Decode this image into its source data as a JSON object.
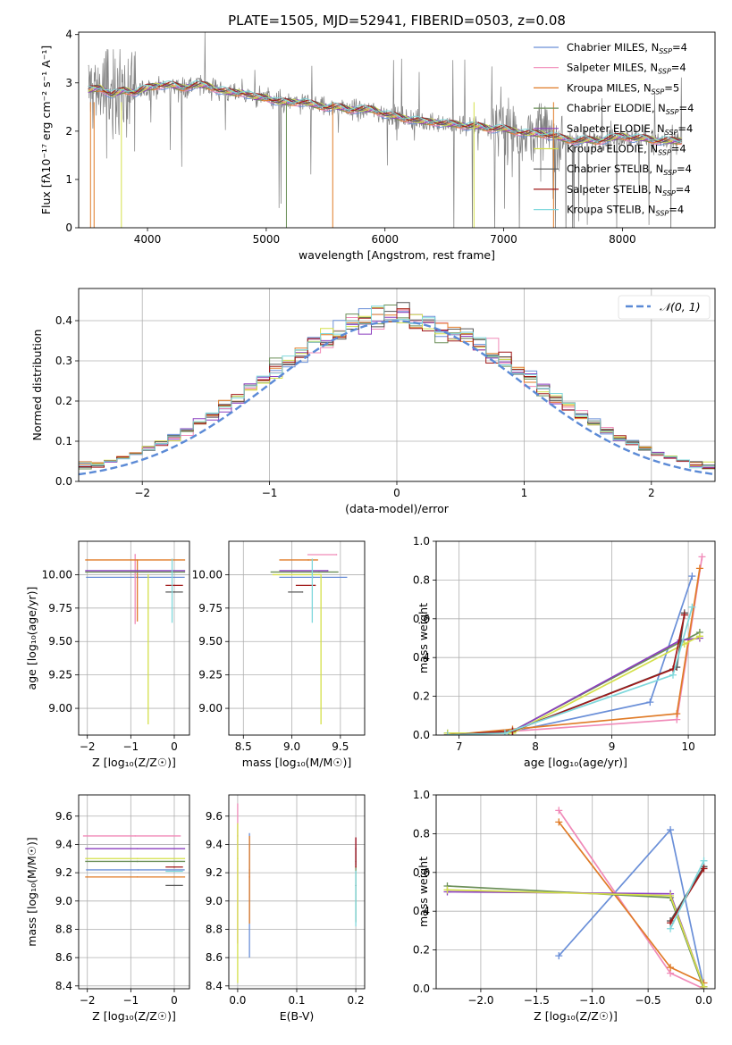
{
  "title": "PLATE=1505, MJD=52941, FIBERID=0503, z=0.08",
  "colors": [
    "#6a8fd8",
    "#f08ab8",
    "#e07b27",
    "#6b8f58",
    "#8b3fbf",
    "#d4e04a",
    "#555555",
    "#a01818",
    "#7fd8dc"
  ],
  "chart_data": [
    {
      "id": "spectrum",
      "type": "line",
      "title": "PLATE=1505, MJD=52941, FIBERID=0503, z=0.08",
      "xlabel": "wavelength [Angstrom, rest frame]",
      "ylabel": "Flux [fλ10⁻¹⁷ erg cm⁻² s⁻¹ A⁻¹]",
      "xlim": [
        3420,
        8780
      ],
      "ylim": [
        0,
        4.05
      ],
      "xticks": [
        4000,
        5000,
        6000,
        7000,
        8000
      ],
      "yticks": [
        0,
        1,
        2,
        3,
        4
      ],
      "legend_position": "right",
      "legend": [
        "Chabrier MILES, N_SSP=4",
        "Salpeter MILES, N_SSP=4",
        "Kroupa MILES, N_SSP=5",
        "Chabrier ELODIE, N_SSP=4",
        "Salpeter ELODIE, N_SSP=4",
        "Kroupa ELODIE, N_SSP=4",
        "Chabrier STELIB, N_SSP=4",
        "Salpeter STELIB, N_SSP=4",
        "Kroupa STELIB, N_SSP=4"
      ],
      "data_color": "#808080",
      "continuum": [
        [
          3500,
          2.85
        ],
        [
          3600,
          2.9
        ],
        [
          3700,
          2.75
        ],
        [
          3800,
          2.85
        ],
        [
          3900,
          2.8
        ],
        [
          4000,
          2.9
        ],
        [
          4100,
          2.95
        ],
        [
          4200,
          2.95
        ],
        [
          4300,
          2.9
        ],
        [
          4400,
          2.95
        ],
        [
          4500,
          2.95
        ],
        [
          4600,
          2.85
        ],
        [
          4700,
          2.8
        ],
        [
          4800,
          2.8
        ],
        [
          4900,
          2.7
        ],
        [
          5000,
          2.7
        ],
        [
          5100,
          2.6
        ],
        [
          5200,
          2.6
        ],
        [
          5300,
          2.6
        ],
        [
          5400,
          2.55
        ],
        [
          5500,
          2.5
        ],
        [
          5600,
          2.5
        ],
        [
          5700,
          2.45
        ],
        [
          5800,
          2.45
        ],
        [
          5900,
          2.45
        ],
        [
          6000,
          2.35
        ],
        [
          6100,
          2.3
        ],
        [
          6200,
          2.25
        ],
        [
          6300,
          2.2
        ],
        [
          6400,
          2.2
        ],
        [
          6500,
          2.15
        ],
        [
          6600,
          2.15
        ],
        [
          6700,
          2.1
        ],
        [
          6800,
          2.1
        ],
        [
          6900,
          2.05
        ],
        [
          7000,
          2.05
        ],
        [
          7100,
          2.0
        ],
        [
          7200,
          1.95
        ],
        [
          7300,
          1.95
        ],
        [
          7400,
          1.9
        ],
        [
          7500,
          1.85
        ],
        [
          7600,
          1.8
        ],
        [
          7700,
          1.82
        ],
        [
          7800,
          1.8
        ],
        [
          7900,
          1.85
        ],
        [
          8000,
          1.9
        ],
        [
          8100,
          1.85
        ],
        [
          8200,
          1.85
        ],
        [
          8300,
          1.8
        ],
        [
          8400,
          1.8
        ],
        [
          8500,
          1.8
        ]
      ]
    },
    {
      "id": "residuals",
      "type": "line",
      "xlabel": "(data-model)/error",
      "ylabel": "Normed distribution",
      "xlim": [
        -2.5,
        2.5
      ],
      "ylim": [
        0,
        0.48
      ],
      "xticks": [
        -2,
        -1,
        0,
        1,
        2
      ],
      "yticks": [
        0.0,
        0.1,
        0.2,
        0.3,
        0.4
      ],
      "grid": true,
      "legend": [
        "𝒩(0, 1)"
      ],
      "legend_position": "upper right",
      "gaussian": {
        "mean": 0,
        "sigma": 1,
        "color": "#5b8ad6"
      },
      "bin_width": 0.1
    },
    {
      "id": "age_vs_Z",
      "type": "scatter",
      "xlabel": "Z [log₁₀(Z/Z☉)]",
      "ylabel": "age  [log₁₀(age/yr)]",
      "xlim": [
        -2.2,
        0.35
      ],
      "ylim": [
        8.8,
        10.25
      ],
      "xticks": [
        -2,
        -1,
        0
      ],
      "yticks": [
        9.0,
        9.25,
        9.5,
        9.75,
        10.0
      ],
      "points": [
        {
          "x": -0.83,
          "xerr": [
            1.2,
            1.07
          ],
          "y": 9.98,
          "yerr": [
            0.0,
            0.0
          ]
        },
        {
          "x": -0.9,
          "xerr": [
            0.0,
            0.0
          ],
          "y": 10.15,
          "yerr": [
            0.52,
            0.0
          ]
        },
        {
          "x": -0.85,
          "xerr": [
            1.2,
            1.1
          ],
          "y": 10.11,
          "yerr": [
            0.46,
            0.0
          ]
        },
        {
          "x": -0.85,
          "xerr": [
            1.2,
            1.1
          ],
          "y": 10.02,
          "yerr": [
            0.0,
            0.0
          ]
        },
        {
          "x": -0.85,
          "xerr": [
            1.2,
            1.1
          ],
          "y": 10.03,
          "yerr": [
            0.0,
            0.0
          ]
        },
        {
          "x": -0.6,
          "xerr": [
            0.0,
            0.0
          ],
          "y": 10.0,
          "yerr": [
            1.12,
            0.0
          ]
        },
        {
          "x": 0.0,
          "xerr": [
            0.2,
            0.2
          ],
          "y": 9.87,
          "yerr": [
            0.0,
            0.0
          ]
        },
        {
          "x": 0.0,
          "xerr": [
            0.2,
            0.2
          ],
          "y": 9.92,
          "yerr": [
            0.0,
            0.0
          ]
        },
        {
          "x": -0.05,
          "xerr": [
            0.0,
            0.0
          ],
          "y": 10.0,
          "yerr": [
            0.36,
            0.12
          ]
        }
      ]
    },
    {
      "id": "age_vs_mass",
      "type": "scatter",
      "xlabel": "mass [log₁₀(M/M☉)]",
      "xlim": [
        8.35,
        9.75
      ],
      "ylim": [
        8.8,
        10.25
      ],
      "xticks": [
        8.5,
        9.0,
        9.5
      ],
      "yticks": [
        9.0,
        9.25,
        9.5,
        9.75,
        10.0
      ],
      "points": [
        {
          "x": 9.22,
          "xerr": [
            0.35,
            0.35
          ],
          "y": 9.98,
          "yerr": [
            0.0,
            0.0
          ]
        },
        {
          "x": 9.46,
          "xerr": [
            0.3,
            0.0
          ],
          "y": 10.15,
          "yerr": [
            0.0,
            0.0
          ]
        },
        {
          "x": 9.17,
          "xerr": [
            0.3,
            0.1
          ],
          "y": 10.11,
          "yerr": [
            0.0,
            0.0
          ]
        },
        {
          "x": 9.28,
          "xerr": [
            0.5,
            0.2
          ],
          "y": 10.02,
          "yerr": [
            0.0,
            0.0
          ]
        },
        {
          "x": 9.37,
          "xerr": [
            0.5,
            0.0
          ],
          "y": 10.03,
          "yerr": [
            0.0,
            0.0
          ]
        },
        {
          "x": 9.3,
          "xerr": [
            0.5,
            0.0
          ],
          "y": 10.0,
          "yerr": [
            1.12,
            0.0
          ]
        },
        {
          "x": 9.11,
          "xerr": [
            0.15,
            0.0
          ],
          "y": 9.87,
          "yerr": [
            0.0,
            0.0
          ]
        },
        {
          "x": 9.24,
          "xerr": [
            0.2,
            0.0
          ],
          "y": 9.92,
          "yerr": [
            0.0,
            0.0
          ]
        },
        {
          "x": 9.21,
          "xerr": [
            0.0,
            0.0
          ],
          "y": 10.0,
          "yerr": [
            0.36,
            0.12
          ]
        }
      ]
    },
    {
      "id": "weight_vs_age",
      "type": "line",
      "xlabel": "age  [log₁₀(age/yr)]",
      "ylabel": "mass weight",
      "xlim": [
        6.7,
        10.35
      ],
      "ylim": [
        0,
        1.0
      ],
      "xticks": [
        7,
        8,
        9,
        10
      ],
      "yticks": [
        0.0,
        0.2,
        0.4,
        0.6,
        0.8,
        1.0
      ],
      "series": [
        {
          "x": [
            6.85,
            7.6,
            9.5,
            10.05
          ],
          "y": [
            0.01,
            0.01,
            0.17,
            0.82
          ]
        },
        {
          "x": [
            6.85,
            7.7,
            9.85,
            10.18
          ],
          "y": [
            0.0,
            0.02,
            0.08,
            0.92
          ]
        },
        {
          "x": [
            6.85,
            7.7,
            9.85,
            10.15
          ],
          "y": [
            0.0,
            0.03,
            0.11,
            0.86
          ]
        },
        {
          "x": [
            6.85,
            7.65,
            9.9,
            10.15
          ],
          "y": [
            0.01,
            0.01,
            0.48,
            0.53
          ]
        },
        {
          "x": [
            6.85,
            7.7,
            9.9,
            10.15
          ],
          "y": [
            0.0,
            0.02,
            0.49,
            0.5
          ]
        },
        {
          "x": [
            6.85,
            7.7,
            9.95,
            10.15
          ],
          "y": [
            0.01,
            0.01,
            0.47,
            0.51
          ]
        },
        {
          "x": [
            6.85,
            7.7,
            9.85,
            9.95
          ],
          "y": [
            0.0,
            0.02,
            0.35,
            0.63
          ]
        },
        {
          "x": [
            6.85,
            7.7,
            9.8,
            9.95
          ],
          "y": [
            0.0,
            0.02,
            0.34,
            0.62
          ]
        },
        {
          "x": [
            6.85,
            7.6,
            9.8,
            10.05
          ],
          "y": [
            0.0,
            0.01,
            0.31,
            0.66
          ]
        }
      ]
    },
    {
      "id": "mass_vs_Z",
      "type": "scatter",
      "xlabel": "Z [log₁₀(Z/Z☉)]",
      "ylabel": "mass [log₁₀(M/M☉)]",
      "xlim": [
        -2.2,
        0.35
      ],
      "ylim": [
        8.38,
        9.75
      ],
      "xticks": [
        -2,
        -1,
        0
      ],
      "yticks": [
        8.4,
        8.6,
        8.8,
        9.0,
        9.2,
        9.4,
        9.6
      ],
      "points": [
        {
          "x": -0.83,
          "xerr": [
            1.2,
            1.07
          ],
          "y": 9.22,
          "yerr": [
            0.0,
            0.0
          ]
        },
        {
          "x": -0.9,
          "xerr": [
            1.2,
            1.05
          ],
          "y": 9.46,
          "yerr": [
            0.0,
            0.0
          ]
        },
        {
          "x": -0.85,
          "xerr": [
            1.2,
            1.1
          ],
          "y": 9.17,
          "yerr": [
            0.0,
            0.0
          ]
        },
        {
          "x": -0.85,
          "xerr": [
            1.2,
            1.1
          ],
          "y": 9.28,
          "yerr": [
            0.0,
            0.0
          ]
        },
        {
          "x": -0.85,
          "xerr": [
            1.2,
            1.1
          ],
          "y": 9.37,
          "yerr": [
            0.0,
            0.0
          ]
        },
        {
          "x": -0.85,
          "xerr": [
            1.2,
            1.1
          ],
          "y": 9.3,
          "yerr": [
            0.0,
            0.0
          ]
        },
        {
          "x": 0.0,
          "xerr": [
            0.2,
            0.2
          ],
          "y": 9.11,
          "yerr": [
            0.0,
            0.0
          ]
        },
        {
          "x": 0.0,
          "xerr": [
            0.2,
            0.2
          ],
          "y": 9.24,
          "yerr": [
            0.0,
            0.0
          ]
        },
        {
          "x": 0.0,
          "xerr": [
            0.2,
            0.2
          ],
          "y": 9.21,
          "yerr": [
            0.0,
            0.0
          ]
        }
      ]
    },
    {
      "id": "mass_vs_ebv",
      "type": "scatter",
      "xlabel": "E(B-V)",
      "xlim": [
        -0.015,
        0.215
      ],
      "ylim": [
        8.38,
        9.75
      ],
      "xticks": [
        0.0,
        0.1,
        0.2
      ],
      "yticks": [
        8.4,
        8.6,
        8.8,
        9.0,
        9.2,
        9.4,
        9.6
      ],
      "points": [
        {
          "x": 0.02,
          "y": 9.22,
          "yerr": [
            0.62,
            0.26
          ]
        },
        {
          "x": 0.0,
          "y": 9.46,
          "yerr": [
            0.76,
            0.23
          ]
        },
        {
          "x": 0.02,
          "y": 9.17,
          "yerr": [
            0.33,
            0.29
          ]
        },
        {
          "x": 0.2,
          "y": 9.28,
          "yerr": [
            0.43,
            0.1
          ]
        },
        {
          "x": 0.2,
          "y": 9.37,
          "yerr": [
            0.12,
            0.08
          ]
        },
        {
          "x": 0.0,
          "y": 9.3,
          "yerr": [
            0.88,
            0.25
          ]
        },
        {
          "x": 0.2,
          "y": 9.11,
          "yerr": [
            0.0,
            0.0
          ]
        },
        {
          "x": 0.2,
          "y": 9.24,
          "yerr": [
            0.0,
            0.21
          ]
        },
        {
          "x": 0.2,
          "y": 9.21,
          "yerr": [
            0.39,
            0.0
          ]
        }
      ]
    },
    {
      "id": "weight_vs_Z",
      "type": "line",
      "xlabel": "Z [log₁₀(Z/Z☉)]",
      "ylabel": "mass weight",
      "xlim": [
        -2.4,
        0.1
      ],
      "ylim": [
        0,
        1.0
      ],
      "xticks": [
        -2.0,
        -1.5,
        -1.0,
        -0.5,
        0.0
      ],
      "yticks": [
        0.0,
        0.2,
        0.4,
        0.6,
        0.8,
        1.0
      ],
      "series": [
        {
          "x": [
            -1.3,
            -0.3,
            0.0
          ],
          "y": [
            0.17,
            0.82,
            0.01
          ]
        },
        {
          "x": [
            -1.3,
            -0.3,
            0.0
          ],
          "y": [
            0.92,
            0.08,
            0.0
          ]
        },
        {
          "x": [
            -1.3,
            -0.3,
            0.0
          ],
          "y": [
            0.86,
            0.11,
            0.03
          ]
        },
        {
          "x": [
            -2.3,
            -0.3,
            0.0
          ],
          "y": [
            0.53,
            0.47,
            0.0
          ]
        },
        {
          "x": [
            -2.3,
            -0.3,
            0.0
          ],
          "y": [
            0.5,
            0.49,
            0.01
          ]
        },
        {
          "x": [
            -2.3,
            -0.3,
            0.0
          ],
          "y": [
            0.51,
            0.48,
            0.01
          ]
        },
        {
          "x": [
            -0.3,
            0.0
          ],
          "y": [
            0.35,
            0.63
          ]
        },
        {
          "x": [
            -0.3,
            0.0
          ],
          "y": [
            0.34,
            0.62
          ]
        },
        {
          "x": [
            -0.3,
            0.0
          ],
          "y": [
            0.31,
            0.66
          ]
        }
      ]
    }
  ]
}
